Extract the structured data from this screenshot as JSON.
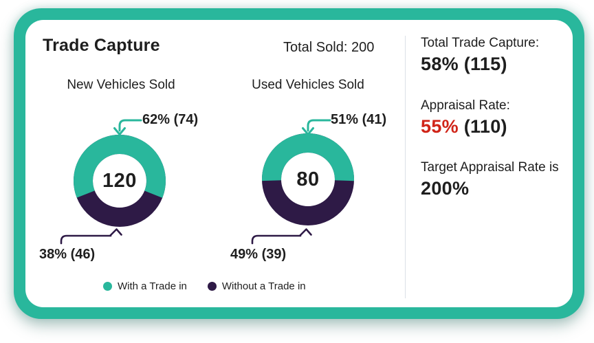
{
  "colors": {
    "teal": "#29b79c",
    "purple": "#2e1a46",
    "red": "#d02418",
    "text": "#1e1e1e",
    "divider": "#dbe0e6"
  },
  "header": {
    "title": "Trade Capture",
    "total_sold": "Total Sold: 200"
  },
  "chart_data": [
    {
      "type": "pie",
      "variant": "donut",
      "title": "New Vehicles Sold",
      "center_label": "120",
      "total": 120,
      "labels": [
        "With a Trade in",
        "Without a Trade in"
      ],
      "values": [
        74,
        46
      ],
      "percents": [
        62,
        38
      ],
      "colors": [
        "#29b79c",
        "#2e1a46"
      ],
      "annotations": [
        "62% (74)",
        "38% (46)"
      ]
    },
    {
      "type": "pie",
      "variant": "donut",
      "title": "Used Vehicles Sold",
      "center_label": "80",
      "total": 80,
      "labels": [
        "With a Trade in",
        "Without a Trade in"
      ],
      "values": [
        41,
        39
      ],
      "percents": [
        51,
        49
      ],
      "colors": [
        "#29b79c",
        "#2e1a46"
      ],
      "annotations": [
        "51% (41)",
        "49% (39)"
      ]
    }
  ],
  "legend": {
    "items": [
      {
        "label": "With a Trade in",
        "color": "#29b79c"
      },
      {
        "label": "Without a Trade in",
        "color": "#2e1a46"
      }
    ]
  },
  "stats": {
    "total_trade_capture": {
      "label": "Total Trade Capture:",
      "value": "58% (115)"
    },
    "appraisal_rate": {
      "label": "Appraisal Rate:",
      "value_accent": "55%",
      "value_rest": " (110)"
    },
    "target": {
      "label": "Target Appraisal Rate is",
      "value": "200%"
    }
  }
}
